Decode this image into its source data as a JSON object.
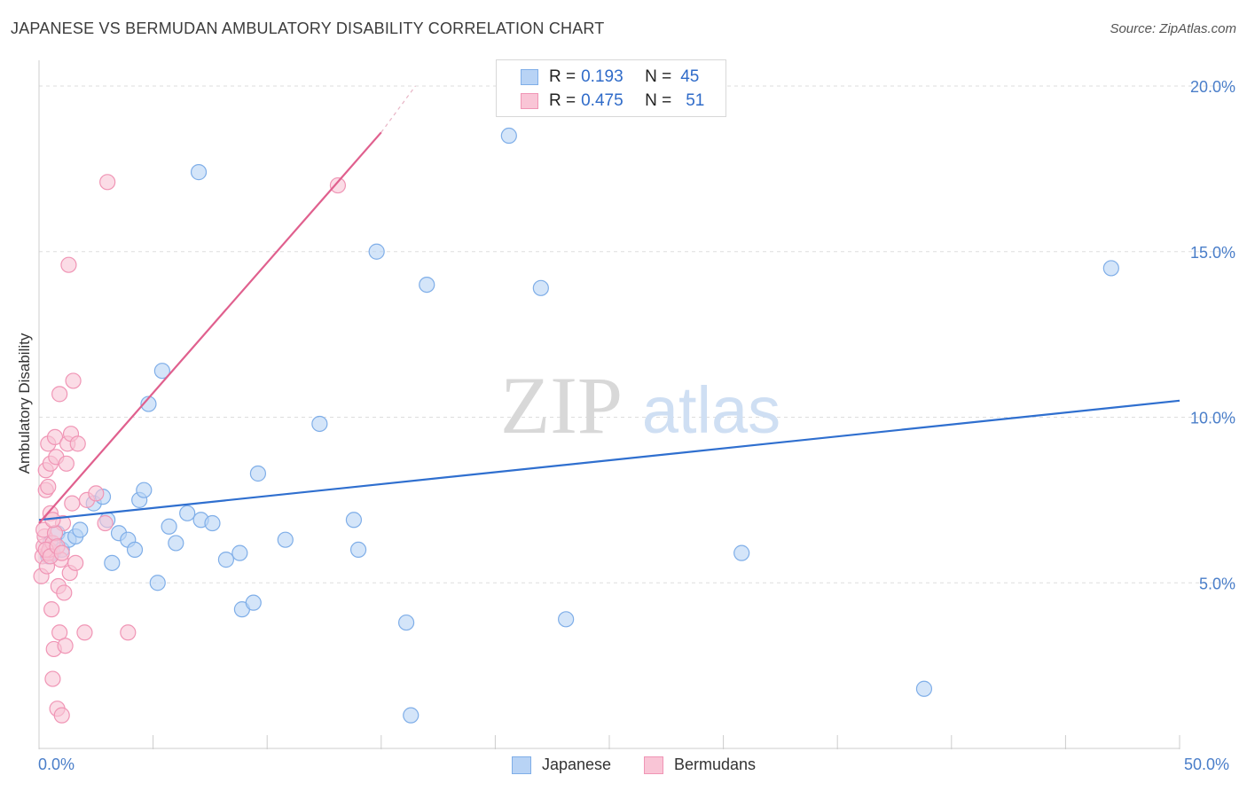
{
  "title": "JAPANESE VS BERMUDAN AMBULATORY DISABILITY CORRELATION CHART",
  "source": "Source: ZipAtlas.com",
  "watermark": {
    "zip": "ZIP",
    "atlas": "atlas"
  },
  "legend_top": [
    {
      "r_label": "R =",
      "r_value": "0.193",
      "n_label": "N =",
      "n_value": "45"
    },
    {
      "r_label": "R =",
      "r_value": "0.475",
      "n_label": "N =",
      "n_value": "51"
    }
  ],
  "legend_bottom": [
    "Japanese",
    "Bermudans"
  ],
  "colors": {
    "japanese_fill": "#b8d3f5",
    "japanese_stroke": "#7faee8",
    "japanese_line": "#2f6fcf",
    "bermudan_fill": "#f9c5d6",
    "bermudan_stroke": "#f095b5",
    "bermudan_line": "#e0608e",
    "tick_text": "#4a7ec9",
    "grid": "#dddddd"
  },
  "chart_data": {
    "type": "scatter",
    "title": "JAPANESE VS BERMUDAN AMBULATORY DISABILITY CORRELATION CHART",
    "xlabel": "",
    "ylabel": "Ambulatory Disability",
    "xlim": [
      0,
      50
    ],
    "ylim": [
      0,
      20
    ],
    "x_tick_labels": [
      "0.0%",
      "50.0%"
    ],
    "y_ticks": [
      5,
      10,
      15,
      20
    ],
    "y_tick_labels": [
      "5.0%",
      "10.0%",
      "15.0%",
      "20.0%"
    ],
    "series": [
      {
        "name": "Japanese",
        "r": 0.193,
        "n": 45,
        "trend": {
          "x0": 0,
          "y0": 6.9,
          "x1": 50,
          "y1": 10.5
        },
        "points": [
          [
            0.5,
            6.2
          ],
          [
            0.6,
            5.9
          ],
          [
            0.8,
            6.5
          ],
          [
            1.0,
            6.0
          ],
          [
            1.3,
            6.3
          ],
          [
            1.6,
            6.4
          ],
          [
            1.8,
            6.6
          ],
          [
            2.4,
            7.4
          ],
          [
            2.8,
            7.6
          ],
          [
            3.0,
            6.9
          ],
          [
            3.2,
            5.6
          ],
          [
            3.5,
            6.5
          ],
          [
            3.9,
            6.3
          ],
          [
            4.2,
            6.0
          ],
          [
            4.4,
            7.5
          ],
          [
            4.6,
            7.8
          ],
          [
            4.8,
            10.4
          ],
          [
            5.2,
            5.0
          ],
          [
            5.4,
            11.4
          ],
          [
            5.7,
            6.7
          ],
          [
            6.0,
            6.2
          ],
          [
            6.5,
            7.1
          ],
          [
            7.0,
            17.4
          ],
          [
            7.1,
            6.9
          ],
          [
            7.6,
            6.8
          ],
          [
            8.2,
            5.7
          ],
          [
            8.8,
            5.9
          ],
          [
            8.9,
            4.2
          ],
          [
            9.4,
            4.4
          ],
          [
            9.6,
            8.3
          ],
          [
            10.8,
            6.3
          ],
          [
            12.3,
            9.8
          ],
          [
            13.8,
            6.9
          ],
          [
            14.0,
            6.0
          ],
          [
            14.8,
            15.0
          ],
          [
            16.1,
            3.8
          ],
          [
            16.3,
            1.0
          ],
          [
            17.0,
            14.0
          ],
          [
            20.6,
            18.5
          ],
          [
            22.0,
            13.9
          ],
          [
            23.1,
            3.9
          ],
          [
            30.8,
            5.9
          ],
          [
            38.8,
            1.8
          ],
          [
            47.0,
            14.5
          ],
          [
            0.4,
            5.8
          ]
        ]
      },
      {
        "name": "Bermudans",
        "r": 0.475,
        "n": 51,
        "trend": {
          "x0": 0,
          "y0": 6.8,
          "x1": 15.0,
          "y1": 18.6
        },
        "trend_dashed": {
          "x0": 15.0,
          "y0": 18.6,
          "x1": 16.5,
          "y1": 20.0
        },
        "points": [
          [
            0.1,
            5.2
          ],
          [
            0.15,
            5.8
          ],
          [
            0.2,
            6.1
          ],
          [
            0.25,
            6.4
          ],
          [
            0.3,
            7.8
          ],
          [
            0.3,
            8.4
          ],
          [
            0.35,
            5.5
          ],
          [
            0.4,
            9.2
          ],
          [
            0.4,
            5.9
          ],
          [
            0.45,
            6.0
          ],
          [
            0.5,
            8.6
          ],
          [
            0.5,
            7.1
          ],
          [
            0.55,
            4.2
          ],
          [
            0.6,
            6.2
          ],
          [
            0.6,
            2.1
          ],
          [
            0.65,
            3.0
          ],
          [
            0.7,
            9.4
          ],
          [
            0.75,
            8.8
          ],
          [
            0.8,
            1.2
          ],
          [
            0.85,
            4.9
          ],
          [
            0.9,
            3.5
          ],
          [
            0.9,
            10.7
          ],
          [
            0.95,
            5.7
          ],
          [
            1.0,
            1.0
          ],
          [
            1.05,
            6.8
          ],
          [
            1.1,
            4.7
          ],
          [
            1.15,
            3.1
          ],
          [
            1.2,
            8.6
          ],
          [
            1.25,
            9.2
          ],
          [
            1.3,
            14.6
          ],
          [
            1.35,
            5.3
          ],
          [
            1.4,
            9.5
          ],
          [
            1.45,
            7.4
          ],
          [
            1.5,
            11.1
          ],
          [
            1.6,
            5.6
          ],
          [
            1.7,
            9.2
          ],
          [
            2.0,
            3.5
          ],
          [
            2.1,
            7.5
          ],
          [
            2.5,
            7.7
          ],
          [
            2.9,
            6.8
          ],
          [
            3.0,
            17.1
          ],
          [
            3.9,
            3.5
          ],
          [
            13.1,
            17.0
          ],
          [
            0.2,
            6.6
          ],
          [
            0.3,
            6.0
          ],
          [
            0.5,
            5.8
          ],
          [
            0.7,
            6.5
          ],
          [
            0.4,
            7.9
          ],
          [
            0.6,
            6.9
          ],
          [
            0.8,
            6.1
          ],
          [
            1.0,
            5.9
          ]
        ]
      }
    ]
  }
}
